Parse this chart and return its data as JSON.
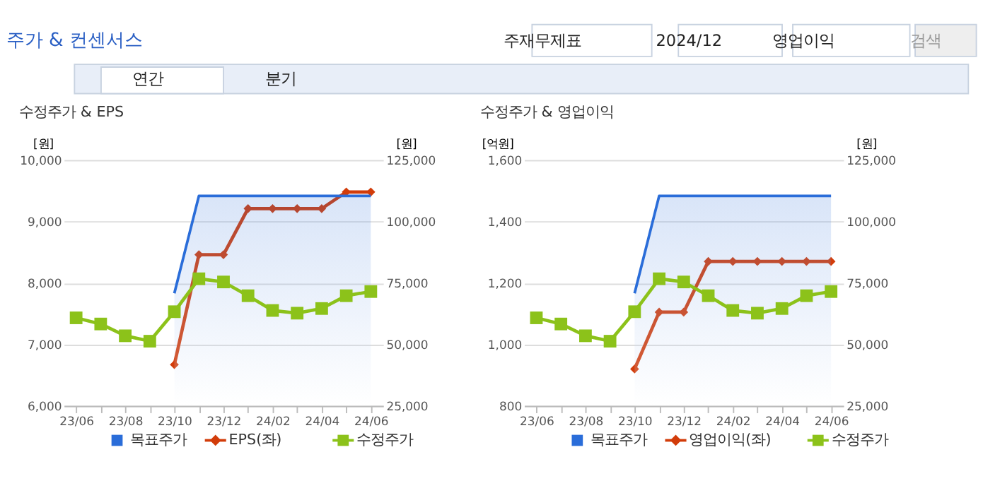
{
  "chart_data": [
    {
      "type": "other",
      "title": "주가 & 컨센서스",
      "annotations": [
        "주재무제표",
        "2024/12",
        "영업이익",
        "검색",
        "연간",
        "분기"
      ]
    },
    {
      "type": "line",
      "title": "수정주가 & EPS",
      "categories": [
        "23/06",
        null,
        "23/08",
        null,
        "23/10",
        null,
        "23/12",
        null,
        "24/02",
        null,
        "24/04",
        null,
        "24/06"
      ],
      "ylabel": "[원]",
      "y2label": "[원]",
      "ylim": [
        6000,
        10000
      ],
      "yticks": [
        {
          "value": 6000,
          "label": "6,000"
        },
        {
          "value": 7000,
          "label": "7,000"
        },
        {
          "value": 8000,
          "label": "8,000"
        },
        {
          "value": 9000,
          "label": "9,000"
        },
        {
          "value": 10000,
          "label": "10,000"
        }
      ],
      "y2lim": [
        25000,
        125000
      ],
      "y2ticks": [
        {
          "value": 25000,
          "label": "25,000"
        },
        {
          "value": 50000,
          "label": "50,000"
        },
        {
          "value": 75000,
          "label": "75,000"
        },
        {
          "value": 100000,
          "label": "100,000"
        },
        {
          "value": 125000,
          "label": "125,000"
        }
      ],
      "grid": "y",
      "legend": "bottom",
      "series": [
        {
          "name": "목표주가",
          "type": "area",
          "axis": "y2",
          "color": "#2a6dd9",
          "values": [
            null,
            null,
            null,
            null,
            70800,
            110400,
            110400,
            110400,
            110400,
            110400,
            110400,
            110400,
            110400
          ]
        },
        {
          "name": "EPS(좌)",
          "color": "#d23c0a",
          "marker": "diamond",
          "values": [
            null,
            null,
            null,
            null,
            6670,
            8460,
            8460,
            9210,
            9210,
            9210,
            9210,
            9480,
            9480
          ]
        },
        {
          "name": "수정주가",
          "axis": "y2",
          "color": "#8cc21a",
          "marker": "square",
          "values": [
            60800,
            58300,
            53500,
            51300,
            63300,
            76700,
            75400,
            69800,
            63800,
            62700,
            64600,
            69800,
            71500
          ]
        }
      ]
    },
    {
      "type": "line",
      "title": "수정주가 & 영업이익",
      "categories": [
        "23/06",
        null,
        "23/08",
        null,
        "23/10",
        null,
        "23/12",
        null,
        "24/02",
        null,
        "24/04",
        null,
        "24/06"
      ],
      "ylabel": "[억원]",
      "y2label": "[원]",
      "ylim": [
        800,
        1600
      ],
      "yticks": [
        800,
        {
          "value": 1000,
          "label": "1,000"
        },
        {
          "value": 1200,
          "label": "1,200"
        },
        {
          "value": 1400,
          "label": "1,400"
        },
        {
          "value": 1600,
          "label": "1,600"
        }
      ],
      "y2lim": [
        25000,
        125000
      ],
      "y2ticks": [
        {
          "value": 25000,
          "label": "25,000"
        },
        {
          "value": 50000,
          "label": "50,000"
        },
        {
          "value": 75000,
          "label": "75,000"
        },
        {
          "value": 100000,
          "label": "100,000"
        },
        {
          "value": 125000,
          "label": "125,000"
        }
      ],
      "grid": "y",
      "legend": "bottom",
      "series": [
        {
          "name": "목표주가",
          "type": "area",
          "axis": "y2",
          "color": "#2a6dd9",
          "values": [
            null,
            null,
            null,
            null,
            70800,
            110400,
            110400,
            110400,
            110400,
            110400,
            110400,
            110400,
            110400
          ]
        },
        {
          "name": "영업이익(좌)",
          "color": "#d23c0a",
          "marker": "diamond",
          "values": [
            null,
            null,
            null,
            null,
            920,
            1105,
            1105,
            1270,
            1270,
            1270,
            1270,
            1270,
            1270
          ]
        },
        {
          "name": "수정주가",
          "axis": "y2",
          "color": "#8cc21a",
          "marker": "square",
          "values": [
            60800,
            58300,
            53500,
            51300,
            63300,
            76700,
            75400,
            69800,
            63800,
            62700,
            64600,
            69800,
            71500
          ]
        }
      ]
    }
  ]
}
